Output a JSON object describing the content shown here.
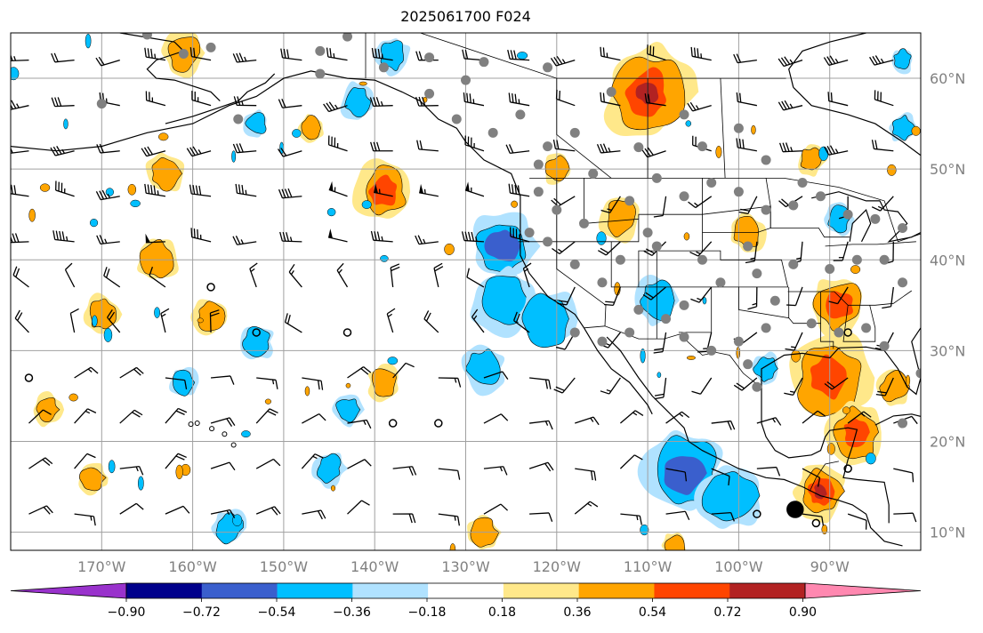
{
  "title": "2025061700 F024",
  "map": {
    "lon_range": [
      -180,
      -80
    ],
    "lat_range": [
      8,
      65
    ],
    "gridlines": true,
    "lat_labels": [
      "10°N",
      "20°N",
      "30°N",
      "40°N",
      "50°N",
      "60°N"
    ],
    "lat_values": [
      10,
      20,
      30,
      40,
      50,
      60
    ],
    "lon_labels": [
      "170°W",
      "160°W",
      "150°W",
      "140°W",
      "130°W",
      "120°W",
      "110°W",
      "100°W",
      "90°W"
    ],
    "lon_values": [
      -170,
      -160,
      -150,
      -140,
      -130,
      -120,
      -110,
      -100,
      -90
    ],
    "colors": {
      "grid": "#a0a0a0",
      "coast": "#000000",
      "station": "#808080"
    }
  },
  "colorbar": {
    "ticks": [
      "−0.90",
      "−0.72",
      "−0.54",
      "−0.36",
      "−0.18",
      "0.18",
      "0.36",
      "0.54",
      "0.72",
      "0.90"
    ],
    "levels": [
      -0.9,
      -0.72,
      -0.54,
      -0.36,
      -0.18,
      0.18,
      0.36,
      0.54,
      0.72,
      0.9
    ],
    "colors": [
      "#9932cc",
      "#00008b",
      "#3a5fcd",
      "#00bfff",
      "#b0e2ff",
      "#ffffff",
      "#ffe88a",
      "#ffa500",
      "#ff4500",
      "#b22222",
      "#ff88b0"
    ]
  },
  "fields": {
    "positive_blobs": [
      {
        "lon": -161,
        "lat": 62.8,
        "size": 1.4,
        "level": 0.45
      },
      {
        "lon": -163,
        "lat": 49.5,
        "size": 1.3,
        "level": 0.5
      },
      {
        "lon": -164,
        "lat": 40.0,
        "size": 1.5,
        "level": 0.5
      },
      {
        "lon": -170,
        "lat": 34.0,
        "size": 1.2,
        "level": 0.45
      },
      {
        "lon": -158,
        "lat": 33.8,
        "size": 1.2,
        "level": 0.45
      },
      {
        "lon": -139,
        "lat": 47.5,
        "size": 2.0,
        "level": 0.55
      },
      {
        "lon": -147,
        "lat": 54.5,
        "size": 0.9,
        "level": 0.45
      },
      {
        "lon": -110,
        "lat": 58.5,
        "size": 3.0,
        "level": 0.65
      },
      {
        "lon": -120,
        "lat": 50.0,
        "size": 1.0,
        "level": 0.45
      },
      {
        "lon": -113,
        "lat": 44.5,
        "size": 1.4,
        "level": 0.45
      },
      {
        "lon": -99,
        "lat": 43.0,
        "size": 1.2,
        "level": 0.45
      },
      {
        "lon": -92,
        "lat": 51.0,
        "size": 1.0,
        "level": 0.45
      },
      {
        "lon": -89,
        "lat": 35.0,
        "size": 2.0,
        "level": 0.55
      },
      {
        "lon": -90,
        "lat": 27.0,
        "size": 2.8,
        "level": 0.6
      },
      {
        "lon": -87,
        "lat": 21.0,
        "size": 2.0,
        "level": 0.55
      },
      {
        "lon": -91,
        "lat": 14.5,
        "size": 1.8,
        "level": 0.7
      },
      {
        "lon": -83,
        "lat": 26.0,
        "size": 1.2,
        "level": 0.5
      },
      {
        "lon": -139,
        "lat": 26.5,
        "size": 1.1,
        "level": 0.45
      },
      {
        "lon": -176,
        "lat": 23.5,
        "size": 1.0,
        "level": 0.45
      },
      {
        "lon": -171,
        "lat": 16.0,
        "size": 1.0,
        "level": 0.45
      },
      {
        "lon": -128,
        "lat": 10.0,
        "size": 1.1,
        "level": 0.45
      },
      {
        "lon": -107,
        "lat": 8.5,
        "size": 0.9,
        "level": 0.45
      }
    ],
    "negative_blobs": [
      {
        "lon": -138,
        "lat": 62.5,
        "size": 1.2,
        "level": -0.4
      },
      {
        "lon": -142,
        "lat": 57.5,
        "size": 1.2,
        "level": -0.5
      },
      {
        "lon": -153,
        "lat": 55.0,
        "size": 0.9,
        "level": -0.4
      },
      {
        "lon": -126,
        "lat": 41.5,
        "size": 2.2,
        "level": -0.6
      },
      {
        "lon": -126,
        "lat": 35.5,
        "size": 2.2,
        "level": -0.45
      },
      {
        "lon": -121,
        "lat": 33.5,
        "size": 2.0,
        "level": -0.4
      },
      {
        "lon": -109,
        "lat": 35.5,
        "size": 1.5,
        "level": -0.5
      },
      {
        "lon": -153,
        "lat": 31.0,
        "size": 1.2,
        "level": -0.4
      },
      {
        "lon": -161,
        "lat": 26.5,
        "size": 1.0,
        "level": -0.4
      },
      {
        "lon": -143,
        "lat": 23.5,
        "size": 1.0,
        "level": -0.4
      },
      {
        "lon": -128,
        "lat": 28.0,
        "size": 1.5,
        "level": -0.4
      },
      {
        "lon": -106,
        "lat": 16.5,
        "size": 2.8,
        "level": -0.6
      },
      {
        "lon": -101,
        "lat": 14.0,
        "size": 2.2,
        "level": -0.5
      },
      {
        "lon": -145,
        "lat": 17.0,
        "size": 1.1,
        "level": -0.4
      },
      {
        "lon": -156,
        "lat": 10.5,
        "size": 1.2,
        "level": -0.4
      },
      {
        "lon": -97,
        "lat": 28.0,
        "size": 1.0,
        "level": -0.4
      },
      {
        "lon": -89,
        "lat": 44.5,
        "size": 1.0,
        "level": -0.45
      },
      {
        "lon": -82,
        "lat": 54.5,
        "size": 1.0,
        "level": -0.45
      },
      {
        "lon": -82,
        "lat": 62.0,
        "size": 0.8,
        "level": -0.4
      }
    ]
  }
}
